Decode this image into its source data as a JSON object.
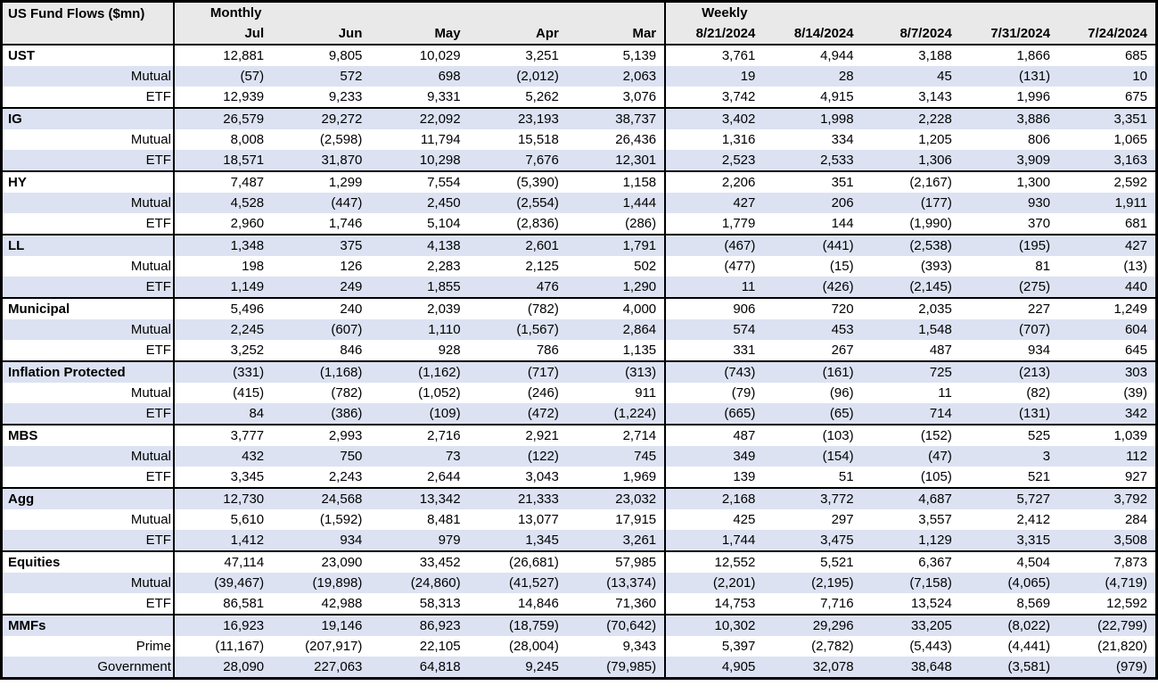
{
  "title": "US Fund Flows ($mn)",
  "colors": {
    "header_bg": "#e9e9e9",
    "stripe": "#dce2f2",
    "border": "#000000",
    "text": "#000000"
  },
  "sections": [
    {
      "label": "Monthly",
      "columns": [
        "Jul",
        "Jun",
        "May",
        "Apr",
        "Mar"
      ]
    },
    {
      "label": "Weekly",
      "columns": [
        "8/21/2024",
        "8/14/2024",
        "8/7/2024",
        "7/31/2024",
        "7/24/2024"
      ]
    }
  ],
  "groups": [
    {
      "name": "UST",
      "rows": [
        {
          "label": "UST",
          "values": [
            "12,881",
            "9,805",
            "10,029",
            "3,251",
            "5,139",
            "3,761",
            "4,944",
            "3,188",
            "1,866",
            "685"
          ]
        },
        {
          "label": "Mutual",
          "values": [
            "(57)",
            "572",
            "698",
            "(2,012)",
            "2,063",
            "19",
            "28",
            "45",
            "(131)",
            "10"
          ]
        },
        {
          "label": "ETF",
          "values": [
            "12,939",
            "9,233",
            "9,331",
            "5,262",
            "3,076",
            "3,742",
            "4,915",
            "3,143",
            "1,996",
            "675"
          ]
        }
      ]
    },
    {
      "name": "IG",
      "rows": [
        {
          "label": "IG",
          "values": [
            "26,579",
            "29,272",
            "22,092",
            "23,193",
            "38,737",
            "3,402",
            "1,998",
            "2,228",
            "3,886",
            "3,351"
          ]
        },
        {
          "label": "Mutual",
          "values": [
            "8,008",
            "(2,598)",
            "11,794",
            "15,518",
            "26,436",
            "1,316",
            "334",
            "1,205",
            "806",
            "1,065"
          ]
        },
        {
          "label": "ETF",
          "values": [
            "18,571",
            "31,870",
            "10,298",
            "7,676",
            "12,301",
            "2,523",
            "2,533",
            "1,306",
            "3,909",
            "3,163"
          ]
        }
      ]
    },
    {
      "name": "HY",
      "rows": [
        {
          "label": "HY",
          "values": [
            "7,487",
            "1,299",
            "7,554",
            "(5,390)",
            "1,158",
            "2,206",
            "351",
            "(2,167)",
            "1,300",
            "2,592"
          ]
        },
        {
          "label": "Mutual",
          "values": [
            "4,528",
            "(447)",
            "2,450",
            "(2,554)",
            "1,444",
            "427",
            "206",
            "(177)",
            "930",
            "1,911"
          ]
        },
        {
          "label": "ETF",
          "values": [
            "2,960",
            "1,746",
            "5,104",
            "(2,836)",
            "(286)",
            "1,779",
            "144",
            "(1,990)",
            "370",
            "681"
          ]
        }
      ]
    },
    {
      "name": "LL",
      "rows": [
        {
          "label": "LL",
          "values": [
            "1,348",
            "375",
            "4,138",
            "2,601",
            "1,791",
            "(467)",
            "(441)",
            "(2,538)",
            "(195)",
            "427"
          ]
        },
        {
          "label": "Mutual",
          "values": [
            "198",
            "126",
            "2,283",
            "2,125",
            "502",
            "(477)",
            "(15)",
            "(393)",
            "81",
            "(13)"
          ]
        },
        {
          "label": "ETF",
          "values": [
            "1,149",
            "249",
            "1,855",
            "476",
            "1,290",
            "11",
            "(426)",
            "(2,145)",
            "(275)",
            "440"
          ]
        }
      ]
    },
    {
      "name": "Municipal",
      "rows": [
        {
          "label": "Municipal",
          "values": [
            "5,496",
            "240",
            "2,039",
            "(782)",
            "4,000",
            "906",
            "720",
            "2,035",
            "227",
            "1,249"
          ]
        },
        {
          "label": "Mutual",
          "values": [
            "2,245",
            "(607)",
            "1,110",
            "(1,567)",
            "2,864",
            "574",
            "453",
            "1,548",
            "(707)",
            "604"
          ]
        },
        {
          "label": "ETF",
          "values": [
            "3,252",
            "846",
            "928",
            "786",
            "1,135",
            "331",
            "267",
            "487",
            "934",
            "645"
          ]
        }
      ]
    },
    {
      "name": "Inflation Protected",
      "rows": [
        {
          "label": "Inflation Protected",
          "values": [
            "(331)",
            "(1,168)",
            "(1,162)",
            "(717)",
            "(313)",
            "(743)",
            "(161)",
            "725",
            "(213)",
            "303"
          ]
        },
        {
          "label": "Mutual",
          "values": [
            "(415)",
            "(782)",
            "(1,052)",
            "(246)",
            "911",
            "(79)",
            "(96)",
            "11",
            "(82)",
            "(39)"
          ]
        },
        {
          "label": "ETF",
          "values": [
            "84",
            "(386)",
            "(109)",
            "(472)",
            "(1,224)",
            "(665)",
            "(65)",
            "714",
            "(131)",
            "342"
          ]
        }
      ]
    },
    {
      "name": "MBS",
      "rows": [
        {
          "label": "MBS",
          "values": [
            "3,777",
            "2,993",
            "2,716",
            "2,921",
            "2,714",
            "487",
            "(103)",
            "(152)",
            "525",
            "1,039"
          ]
        },
        {
          "label": "Mutual",
          "values": [
            "432",
            "750",
            "73",
            "(122)",
            "745",
            "349",
            "(154)",
            "(47)",
            "3",
            "112"
          ]
        },
        {
          "label": "ETF",
          "values": [
            "3,345",
            "2,243",
            "2,644",
            "3,043",
            "1,969",
            "139",
            "51",
            "(105)",
            "521",
            "927"
          ]
        }
      ]
    },
    {
      "name": "Agg",
      "rows": [
        {
          "label": "Agg",
          "values": [
            "12,730",
            "24,568",
            "13,342",
            "21,333",
            "23,032",
            "2,168",
            "3,772",
            "4,687",
            "5,727",
            "3,792"
          ]
        },
        {
          "label": "Mutual",
          "values": [
            "5,610",
            "(1,592)",
            "8,481",
            "13,077",
            "17,915",
            "425",
            "297",
            "3,557",
            "2,412",
            "284"
          ]
        },
        {
          "label": "ETF",
          "values": [
            "1,412",
            "934",
            "979",
            "1,345",
            "3,261",
            "1,744",
            "3,475",
            "1,129",
            "3,315",
            "3,508"
          ]
        }
      ]
    },
    {
      "name": "Equities",
      "rows": [
        {
          "label": "Equities",
          "values": [
            "47,114",
            "23,090",
            "33,452",
            "(26,681)",
            "57,985",
            "12,552",
            "5,521",
            "6,367",
            "4,504",
            "7,873"
          ]
        },
        {
          "label": "Mutual",
          "values": [
            "(39,467)",
            "(19,898)",
            "(24,860)",
            "(41,527)",
            "(13,374)",
            "(2,201)",
            "(2,195)",
            "(7,158)",
            "(4,065)",
            "(4,719)"
          ]
        },
        {
          "label": "ETF",
          "values": [
            "86,581",
            "42,988",
            "58,313",
            "14,846",
            "71,360",
            "14,753",
            "7,716",
            "13,524",
            "8,569",
            "12,592"
          ]
        }
      ]
    },
    {
      "name": "MMFs",
      "rows": [
        {
          "label": "MMFs",
          "values": [
            "16,923",
            "19,146",
            "86,923",
            "(18,759)",
            "(70,642)",
            "10,302",
            "29,296",
            "33,205",
            "(8,022)",
            "(22,799)"
          ]
        },
        {
          "label": "Prime",
          "values": [
            "(11,167)",
            "(207,917)",
            "22,105",
            "(28,004)",
            "9,343",
            "5,397",
            "(2,782)",
            "(5,443)",
            "(4,441)",
            "(21,820)"
          ]
        },
        {
          "label": "Government",
          "values": [
            "28,090",
            "227,063",
            "64,818",
            "9,245",
            "(79,985)",
            "4,905",
            "32,078",
            "38,648",
            "(3,581)",
            "(979)"
          ]
        }
      ]
    }
  ]
}
